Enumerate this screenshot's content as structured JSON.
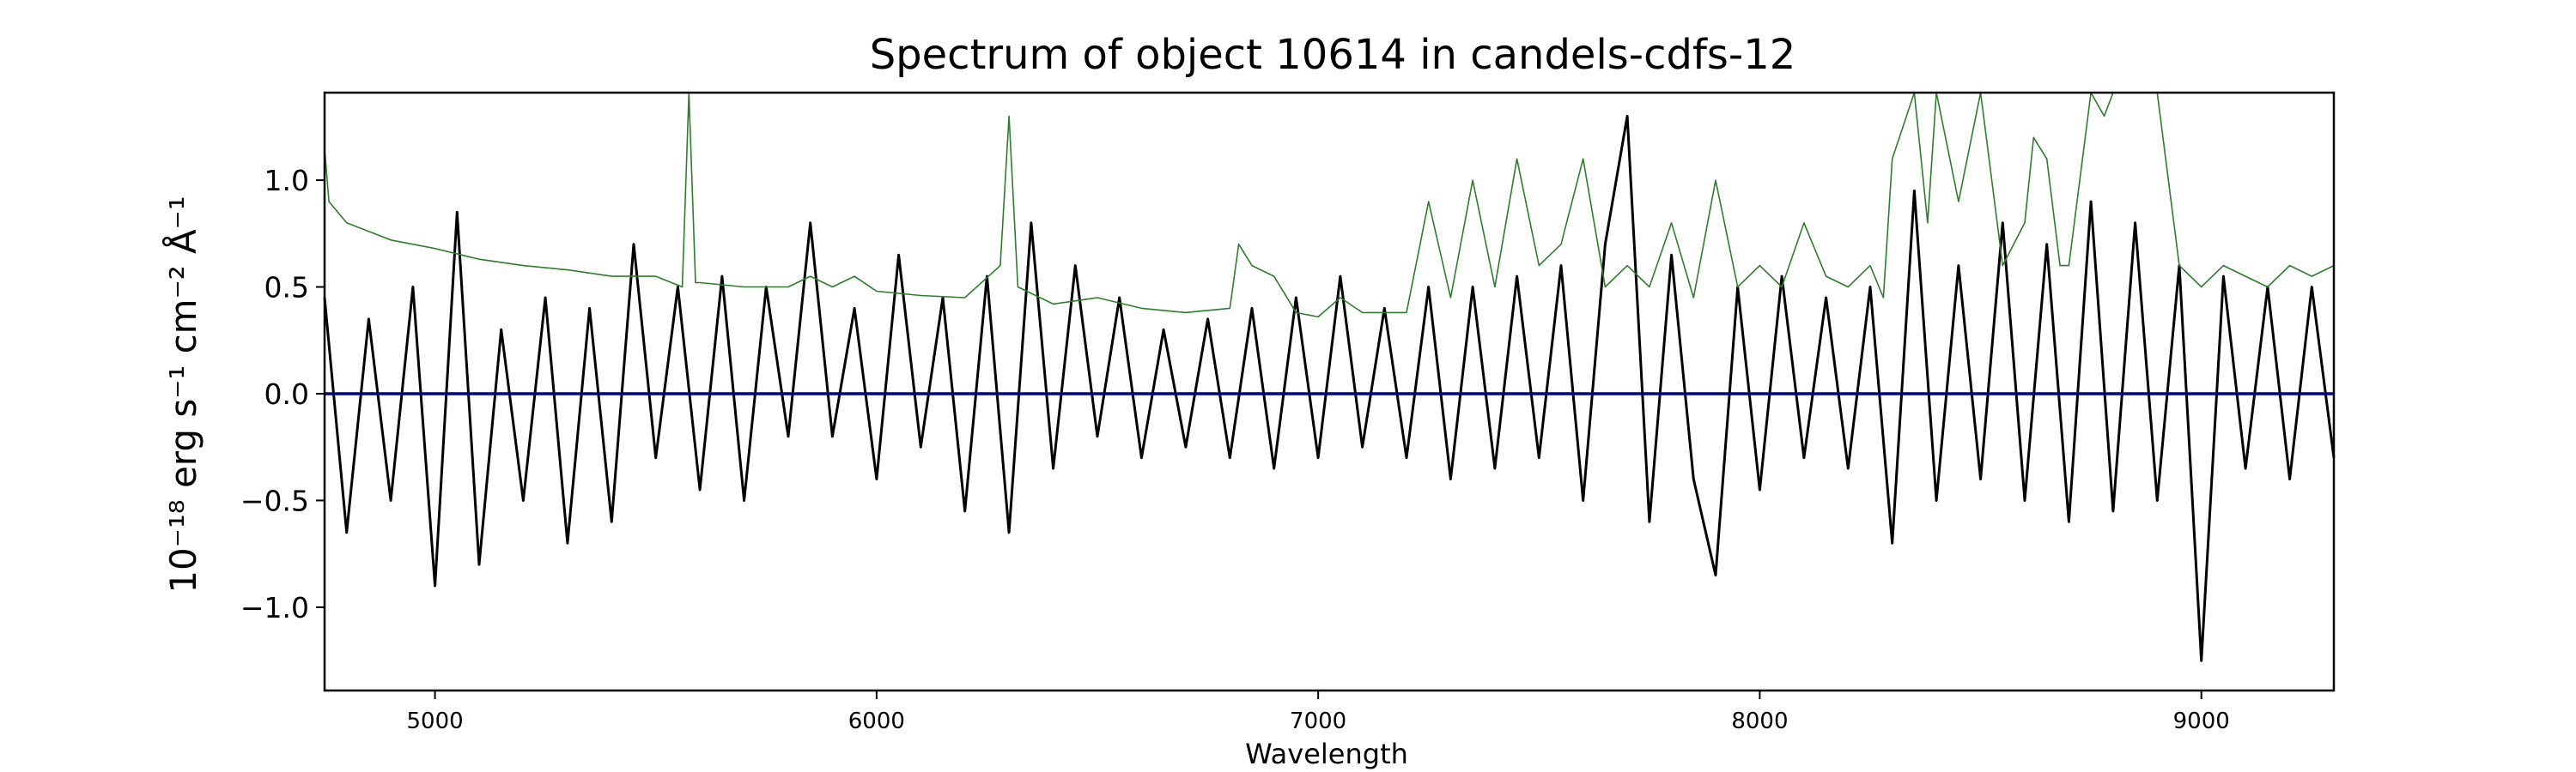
{
  "chart_data": {
    "type": "line",
    "title": "Spectrum of object 10614 in candels-cdfs-12",
    "xlabel": "Wavelength",
    "ylabel": "10⁻¹⁸ erg s⁻¹ cm⁻² Å⁻¹",
    "xlim": [
      4750,
      9300
    ],
    "ylim": [
      -1.39,
      1.41
    ],
    "x_ticks": [
      5000,
      6000,
      7000,
      8000,
      9000
    ],
    "y_ticks": [
      -1.0,
      -0.5,
      0.0,
      0.5,
      1.0
    ],
    "y_tick_labels": [
      "−1.0",
      "−0.5",
      "0.0",
      "0.5",
      "1.0"
    ],
    "grid": false,
    "series": [
      {
        "color": "#000000",
        "x": [
          4750,
          4800,
          4850,
          4900,
          4950,
          5000,
          5050,
          5100,
          5150,
          5200,
          5250,
          5300,
          5350,
          5400,
          5450,
          5500,
          5550,
          5600,
          5650,
          5700,
          5750,
          5800,
          5850,
          5900,
          5950,
          6000,
          6050,
          6100,
          6150,
          6200,
          6250,
          6300,
          6350,
          6400,
          6450,
          6500,
          6550,
          6600,
          6650,
          6700,
          6750,
          6800,
          6850,
          6900,
          6950,
          7000,
          7050,
          7100,
          7150,
          7200,
          7250,
          7300,
          7350,
          7400,
          7450,
          7500,
          7550,
          7600,
          7650,
          7700,
          7750,
          7800,
          7850,
          7900,
          7950,
          8000,
          8050,
          8100,
          8150,
          8200,
          8250,
          8300,
          8350,
          8400,
          8450,
          8500,
          8550,
          8600,
          8650,
          8700,
          8750,
          8800,
          8850,
          8900,
          8950,
          9000,
          9050,
          9100,
          9150,
          9200,
          9250,
          9300
        ],
        "y": [
          0.45,
          -0.65,
          0.35,
          -0.5,
          0.5,
          -0.9,
          0.85,
          -0.8,
          0.3,
          -0.5,
          0.45,
          -0.7,
          0.4,
          -0.6,
          0.7,
          -0.3,
          0.5,
          -0.45,
          0.55,
          -0.5,
          0.5,
          -0.2,
          0.8,
          -0.2,
          0.4,
          -0.4,
          0.65,
          -0.25,
          0.45,
          -0.55,
          0.55,
          -0.65,
          0.8,
          -0.35,
          0.6,
          -0.2,
          0.45,
          -0.3,
          0.3,
          -0.25,
          0.35,
          -0.3,
          0.4,
          -0.35,
          0.45,
          -0.3,
          0.55,
          -0.25,
          0.4,
          -0.3,
          0.5,
          -0.4,
          0.5,
          -0.35,
          0.55,
          -0.3,
          0.6,
          -0.5,
          0.7,
          1.3,
          -0.6,
          0.65,
          -0.4,
          -0.85,
          0.5,
          -0.45,
          0.55,
          -0.3,
          0.45,
          -0.35,
          0.5,
          -0.7,
          0.95,
          -0.5,
          0.6,
          -0.4,
          0.8,
          -0.5,
          0.7,
          -0.6,
          0.9,
          -0.55,
          0.8,
          -0.5,
          0.6,
          -1.25,
          0.55,
          -0.35,
          0.5,
          -0.4,
          0.5,
          -0.3
        ]
      },
      {
        "color": "#2e7d2e",
        "x": [
          4750,
          4760,
          4800,
          4900,
          5000,
          5100,
          5200,
          5300,
          5400,
          5500,
          5560,
          5575,
          5590,
          5600,
          5700,
          5800,
          5850,
          5900,
          5950,
          6000,
          6100,
          6200,
          6280,
          6300,
          6320,
          6400,
          6500,
          6600,
          6700,
          6800,
          6820,
          6850,
          6900,
          6950,
          7000,
          7050,
          7100,
          7200,
          7250,
          7300,
          7350,
          7400,
          7450,
          7500,
          7550,
          7600,
          7650,
          7700,
          7750,
          7800,
          7850,
          7900,
          7950,
          8000,
          8050,
          8100,
          8150,
          8200,
          8250,
          8280,
          8300,
          8350,
          8380,
          8400,
          8450,
          8500,
          8550,
          8600,
          8620,
          8650,
          8680,
          8700,
          8750,
          8780,
          8800,
          8850,
          8900,
          8950,
          9000,
          9050,
          9100,
          9150,
          9200,
          9250,
          9300
        ],
        "y": [
          1.15,
          0.9,
          0.8,
          0.72,
          0.68,
          0.63,
          0.6,
          0.58,
          0.55,
          0.55,
          0.5,
          1.41,
          0.52,
          0.52,
          0.5,
          0.5,
          0.55,
          0.5,
          0.55,
          0.48,
          0.46,
          0.45,
          0.6,
          1.3,
          0.5,
          0.42,
          0.45,
          0.4,
          0.38,
          0.4,
          0.7,
          0.6,
          0.55,
          0.38,
          0.36,
          0.45,
          0.38,
          0.38,
          0.9,
          0.45,
          1.0,
          0.5,
          1.1,
          0.6,
          0.7,
          1.1,
          0.5,
          0.6,
          0.5,
          0.8,
          0.45,
          1.0,
          0.5,
          0.6,
          0.5,
          0.8,
          0.55,
          0.5,
          0.6,
          0.45,
          1.1,
          1.41,
          0.8,
          1.41,
          0.9,
          1.41,
          0.6,
          0.8,
          1.2,
          1.1,
          0.6,
          0.6,
          1.41,
          1.3,
          1.41,
          1.41,
          1.41,
          0.6,
          0.5,
          0.6,
          0.55,
          0.5,
          0.6,
          0.55,
          0.6
        ]
      },
      {
        "color": "#00008b",
        "x": [
          4750,
          9300
        ],
        "y": [
          0.0,
          0.0
        ]
      }
    ]
  }
}
